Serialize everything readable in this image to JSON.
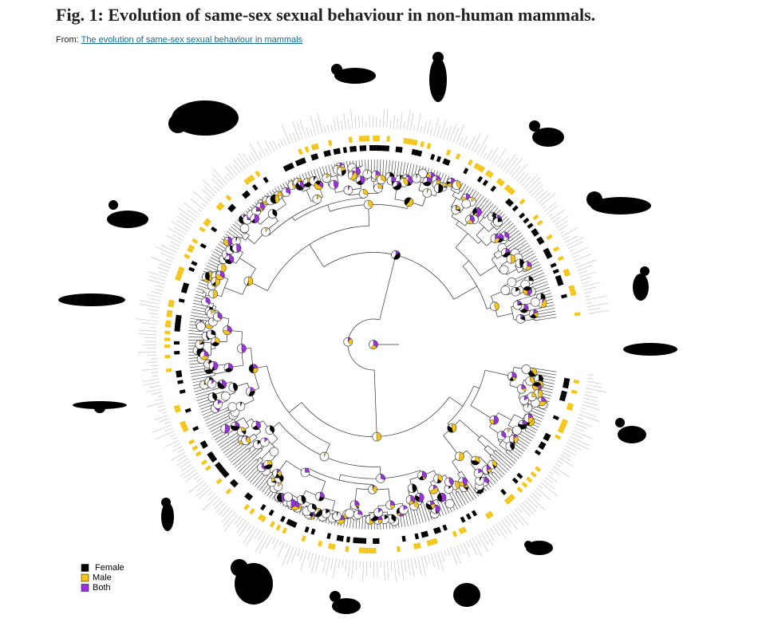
{
  "header": {
    "title": "Fig. 1: Evolution of same-sex sexual behaviour in non-human mammals.",
    "source_prefix": "From:",
    "source_link": "The evolution of same-sex sexual behaviour in mammals"
  },
  "legend": [
    {
      "label": "Female",
      "color": "#000000"
    },
    {
      "label": "Male",
      "color": "#f5c518"
    },
    {
      "label": "Both",
      "color": "#9b30e0"
    }
  ]
}
